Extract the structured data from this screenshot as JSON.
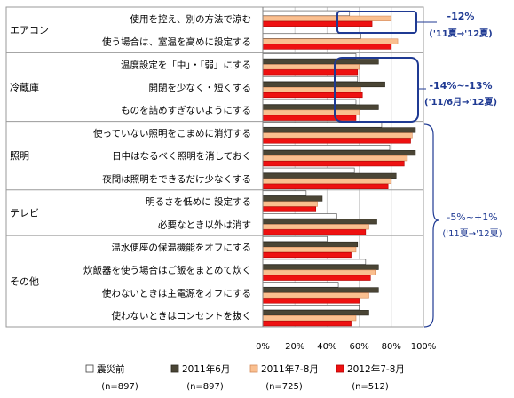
{
  "chart_data": {
    "type": "bar",
    "orientation": "horizontal",
    "grid": true,
    "legend_position": "bottom",
    "x_axis": {
      "range": [
        0,
        100
      ],
      "ticks": [
        "0%",
        "20%",
        "40%",
        "60%",
        "80%",
        "100%"
      ]
    },
    "groups": [
      {
        "label": "エアコン",
        "start": 0,
        "end": 2
      },
      {
        "label": "冷蔵庫",
        "start": 2,
        "end": 5
      },
      {
        "label": "照明",
        "start": 5,
        "end": 8
      },
      {
        "label": "テレビ",
        "start": 8,
        "end": 10
      },
      {
        "label": "その他",
        "start": 10,
        "end": 14
      }
    ],
    "categories": [
      "使用を控え、別の方法で涼む",
      "使う場合は、室温を高めに設定する",
      "温度設定を「中」・「弱」にする",
      "開閉を少なく・短くする",
      "ものを詰めすぎないようにする",
      "使っていない照明をこまめに消灯する",
      "日中はなるべく照明を消しておく",
      "夜間は照明をできるだけ少なくする",
      "明るさを低めに 設定する",
      "必要なとき以外は消す",
      "温水便座の保温機能をオフにする",
      "炊飯器を使う場合はご飯をまとめて炊く",
      "使わないときは主電源をオフにする",
      "使わないときはコンセントを抜く"
    ],
    "series": [
      {
        "name": "震災前",
        "n": "(n=897)",
        "color": "#ffffff",
        "stroke": "#404040",
        "values": [
          54,
          61,
          58,
          59,
          58,
          74,
          79,
          57,
          27,
          46,
          40,
          64,
          47,
          60
        ]
      },
      {
        "name": "2011年6月",
        "n": "(n=897)",
        "color": "#4a4535",
        "stroke": "#2a271d",
        "values": [
          null,
          null,
          72,
          76,
          72,
          95,
          95,
          83,
          37,
          71,
          59,
          72,
          72,
          66
        ]
      },
      {
        "name": "2011年7-8月",
        "n": "(n=725)",
        "color": "#fabf8f",
        "stroke": "#d48a5a",
        "values": [
          80,
          84,
          60,
          61,
          60,
          93,
          90,
          80,
          34,
          66,
          58,
          70,
          66,
          58
        ]
      },
      {
        "name": "2012年7-8月",
        "n": "(n=512)",
        "color": "#ee1111",
        "stroke": "#b00000",
        "values": [
          68,
          80,
          59,
          62,
          58,
          92,
          88,
          78,
          33,
          64,
          55,
          67,
          60,
          55
        ]
      }
    ],
    "annotations": [
      {
        "label": "-12%",
        "sub": "('11夏→'12夏)",
        "color": "#1f3a93"
      },
      {
        "label": "-14%~-13%",
        "sub": "('11/6月→'12夏)",
        "color": "#1f3a93"
      },
      {
        "label": "-5%~+1%",
        "sub": "('11夏→'12夏)",
        "color": "#1f3a93"
      }
    ]
  }
}
